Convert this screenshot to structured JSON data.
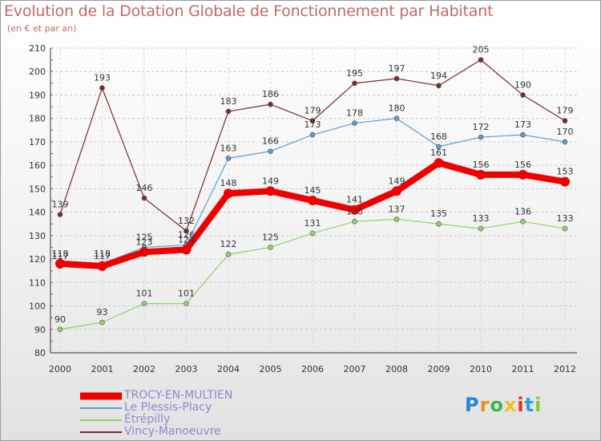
{
  "chart_data": {
    "type": "line",
    "title": "Evolution de la Dotation Globale de Fonctionnement par Habitant",
    "subtitle": "(en € et par an)",
    "xlabel": "",
    "ylabel": "",
    "x": [
      "2000",
      "2001",
      "2002",
      "2003",
      "2004",
      "2005",
      "2006",
      "2007",
      "2008",
      "2009",
      "2010",
      "2011",
      "2012"
    ],
    "ylim": [
      80,
      210
    ],
    "yticks": [
      80,
      90,
      100,
      110,
      120,
      130,
      140,
      150,
      160,
      170,
      180,
      190,
      200,
      210
    ],
    "grid": "horizontal-dashed",
    "legend_position": "bottom-left",
    "series": [
      {
        "name": "Vincy-Manoeuvre",
        "color": "#7a2a2a",
        "values": [
          139,
          193,
          146,
          132,
          183,
          186,
          179,
          195,
          197,
          194,
          205,
          190,
          179
        ],
        "labels": [
          "139",
          "193",
          "146",
          "132",
          "183",
          "186",
          "179",
          "195",
          "197",
          "194",
          "205",
          "190",
          "179"
        ]
      },
      {
        "name": "Le Plessis-Placy",
        "color": "#5a9bd4",
        "values": [
          117,
          118,
          125,
          126,
          163,
          166,
          173,
          178,
          180,
          168,
          172,
          173,
          170
        ],
        "labels": [
          "117",
          "118",
          "125",
          "126",
          "163",
          "166",
          "173",
          "178",
          "180",
          "168",
          "172",
          "173",
          "170"
        ]
      },
      {
        "name": "Étrépilly",
        "color": "#8fd16a",
        "values": [
          90,
          93,
          101,
          101,
          122,
          125,
          131,
          136,
          137,
          135,
          133,
          136,
          133
        ],
        "labels": [
          "90",
          "93",
          "101",
          "101",
          "122",
          "125",
          "131",
          "136",
          "137",
          "135",
          "133",
          "136",
          "133"
        ]
      },
      {
        "name": "TROCY-EN-MULTIEN",
        "color": "#ee0000",
        "values": [
          118,
          117,
          123,
          124,
          148,
          149,
          145,
          141,
          149,
          161,
          156,
          156,
          153
        ],
        "labels": [
          "118",
          "117",
          "123",
          "124",
          "148",
          "149",
          "145",
          "141",
          "149",
          "161",
          "156",
          "156",
          "153"
        ]
      }
    ],
    "legend": [
      "TROCY-EN-MULTIEN",
      "Le Plessis-Placy",
      "Étrépilly",
      "Vincy-Manoeuvre"
    ]
  },
  "logo": {
    "letters": [
      "P",
      "r",
      "o",
      "x",
      "i",
      "t",
      "i"
    ],
    "colors": [
      "#1e88d8",
      "#f08a1c",
      "#3cb54a",
      "#f0c020",
      "#e0302a",
      "#2aa0e0",
      "#8cc63f"
    ]
  }
}
